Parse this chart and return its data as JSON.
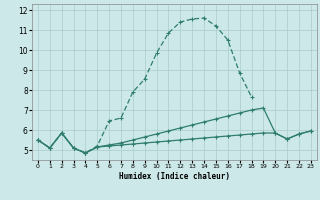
{
  "xlabel": "Humidex (Indice chaleur)",
  "x": [
    0,
    1,
    2,
    3,
    4,
    5,
    6,
    7,
    8,
    9,
    10,
    11,
    12,
    13,
    14,
    15,
    16,
    17,
    18,
    19,
    20,
    21,
    22,
    23
  ],
  "line1": [
    5.5,
    5.1,
    5.85,
    5.1,
    4.85,
    5.2,
    6.45,
    6.6,
    7.9,
    8.55,
    9.85,
    10.85,
    11.4,
    11.55,
    11.6,
    11.2,
    10.5,
    8.85,
    7.65,
    null,
    null,
    null,
    null,
    null
  ],
  "line2": [
    5.5,
    5.1,
    5.85,
    5.1,
    4.85,
    5.15,
    5.25,
    5.35,
    5.5,
    5.65,
    5.8,
    5.95,
    6.1,
    6.25,
    6.4,
    6.55,
    6.7,
    6.85,
    7.0,
    7.1,
    5.85,
    5.55,
    5.8,
    5.95
  ],
  "line3_1": [
    5.5,
    5.1,
    5.85,
    5.1,
    4.85,
    5.15,
    5.2,
    5.25,
    5.3,
    5.35,
    5.4,
    5.45,
    5.5,
    5.55,
    5.6,
    5.65,
    5.7,
    5.75,
    5.8,
    5.85,
    5.85,
    5.55,
    5.8,
    5.95
  ],
  "color": "#2e7d6e",
  "bg_color": "#cce8e8",
  "grid_color": "#aacccc",
  "ylim": [
    4.5,
    12.3
  ],
  "xlim": [
    -0.5,
    23.5
  ],
  "yticks": [
    5,
    6,
    7,
    8,
    9,
    10,
    11,
    12
  ],
  "xticks": [
    0,
    1,
    2,
    3,
    4,
    5,
    6,
    7,
    8,
    9,
    10,
    11,
    12,
    13,
    14,
    15,
    16,
    17,
    18,
    19,
    20,
    21,
    22,
    23
  ]
}
